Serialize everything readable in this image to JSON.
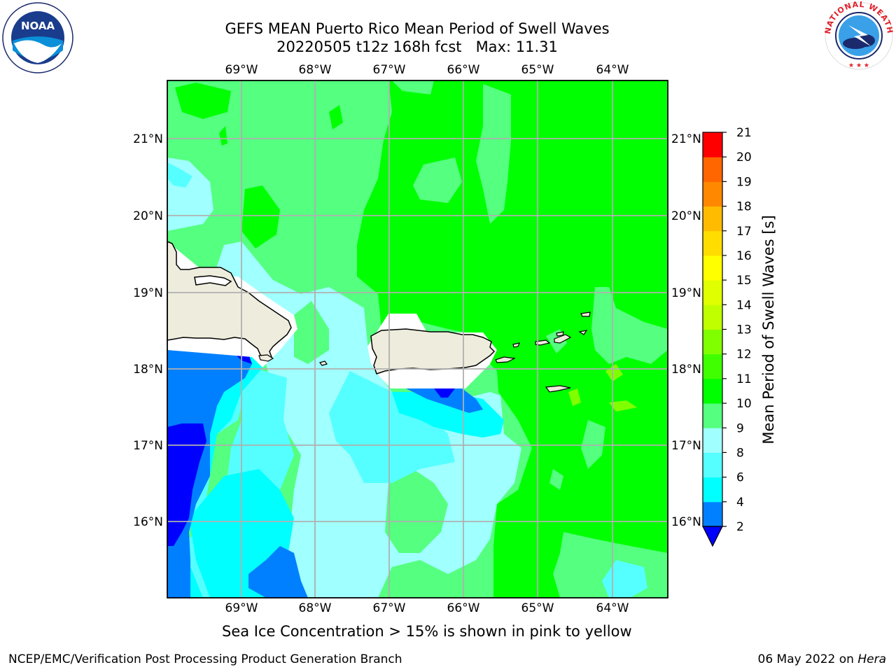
{
  "title_line1": "GEFS MEAN Puerto Rico Mean Period of Swell Waves",
  "title_line2": "20220505 t12z 168h fcst   Max: 11.31",
  "logos": {
    "noaa": "NOAA",
    "nws": "NATIONAL WEATHER SERVICE"
  },
  "map": {
    "lon_ticks": [
      "69°W",
      "68°W",
      "67°W",
      "66°W",
      "65°W",
      "64°W"
    ],
    "lat_ticks_left": [
      "21°N",
      "20°N",
      "19°N",
      "18°N",
      "17°N",
      "16°N"
    ],
    "lat_ticks_right": [
      "21°N",
      "20°N",
      "19°N",
      "18°N",
      "17°N",
      "16°N"
    ],
    "lon_range": [
      -70,
      -63.3
    ],
    "lat_range": [
      15.0,
      21.75
    ],
    "grid": true,
    "colors": {
      "deep_blue": "#0000ff",
      "blue": "#0080ff",
      "cyan": "#00ffff",
      "light_cyan": "#55ffff",
      "pale_cyan": "#a0ffff",
      "light_green": "#55ff80",
      "green": "#00ff00",
      "yellow_green": "#80ff00",
      "land": "#eeecdc"
    }
  },
  "colorbar": {
    "label": "Mean Period of Swell Waves [s]",
    "ticks": [
      "2",
      "4",
      "6",
      "8",
      "9",
      "10",
      "11",
      "12",
      "13",
      "14",
      "15",
      "16",
      "17",
      "18",
      "19",
      "20",
      "21"
    ],
    "colors": [
      "#0080ff",
      "#00ffff",
      "#55ffff",
      "#a0ffff",
      "#55ff80",
      "#00ff00",
      "#40ff00",
      "#80ff00",
      "#c0ff00",
      "#e0ff00",
      "#ffff00",
      "#ffdd00",
      "#ffbb00",
      "#ff8800",
      "#ff6600",
      "#ff3300"
    ],
    "extend_color": "#0000ff",
    "top_color": "#ff0000"
  },
  "caption": "Sea Ice Concentration > 15% is shown in pink to yellow",
  "footer_left": "NCEP/EMC/Verification Post Processing Product Generation Branch",
  "footer_right_date": "06 May 2022 on ",
  "footer_right_host": "Hera"
}
